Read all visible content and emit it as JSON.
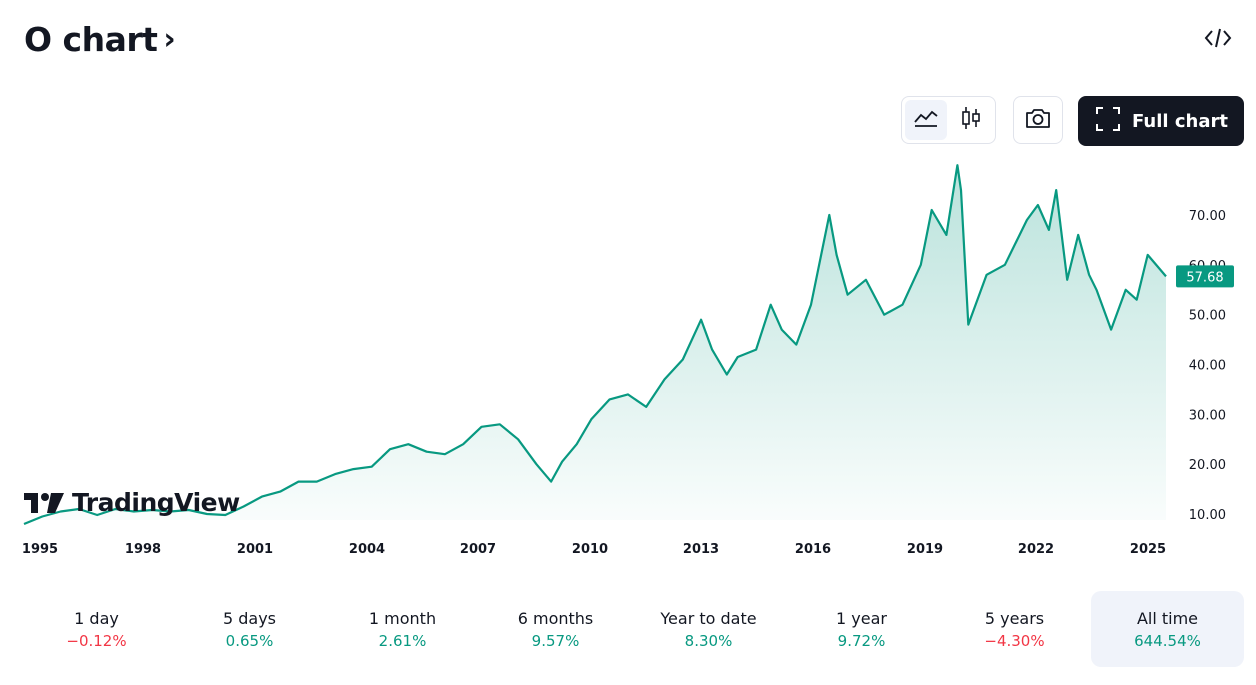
{
  "header": {
    "title": "O chart",
    "chevron": "›"
  },
  "toolbar": {
    "full_chart_label": "Full chart"
  },
  "price_badge": {
    "value": "57.68",
    "color": "#089981"
  },
  "logo": {
    "text": "TradingView"
  },
  "colors": {
    "line": "#089981",
    "positive": "#089981",
    "negative": "#f23645"
  },
  "icons": [
    "code-embed-icon",
    "area-chart-icon",
    "candlestick-icon",
    "camera-icon",
    "fullscreen-icon"
  ],
  "ranges": [
    {
      "label": "1 day",
      "change": "−0.12%",
      "sign": "neg"
    },
    {
      "label": "5 days",
      "change": "0.65%",
      "sign": "pos"
    },
    {
      "label": "1 month",
      "change": "2.61%",
      "sign": "pos"
    },
    {
      "label": "6 months",
      "change": "9.57%",
      "sign": "pos"
    },
    {
      "label": "Year to date",
      "change": "8.30%",
      "sign": "pos"
    },
    {
      "label": "1 year",
      "change": "9.72%",
      "sign": "pos"
    },
    {
      "label": "5 years",
      "change": "−4.30%",
      "sign": "neg"
    },
    {
      "label": "All time",
      "change": "644.54%",
      "sign": "pos",
      "active": true
    }
  ],
  "chart_data": {
    "type": "area",
    "ylim": [
      7,
      80
    ],
    "yticks": [
      "10.00",
      "20.00",
      "30.00",
      "40.00",
      "50.00",
      "60.00",
      "70.00"
    ],
    "xticks": [
      "1995",
      "1998",
      "2001",
      "2004",
      "2007",
      "2010",
      "2013",
      "2016",
      "2019",
      "2022",
      "2025"
    ],
    "xlim": [
      1994.5,
      2025.7
    ],
    "series": [
      {
        "x": [
          1994.5,
          1995.0,
          1995.5,
          1996.0,
          1996.5,
          1997.0,
          1997.5,
          1998.0,
          1998.5,
          1999.0,
          1999.5,
          2000.0,
          2000.5,
          2001.0,
          2001.5,
          2002.0,
          2002.5,
          2003.0,
          2003.5,
          2004.0,
          2004.5,
          2005.0,
          2005.5,
          2006.0,
          2006.5,
          2007.0,
          2007.5,
          2008.0,
          2008.5,
          2008.9,
          2009.2,
          2009.6,
          2010.0,
          2010.5,
          2011.0,
          2011.5,
          2012.0,
          2012.5,
          2013.0,
          2013.3,
          2013.7,
          2014.0,
          2014.5,
          2014.9,
          2015.2,
          2015.6,
          2016.0,
          2016.5,
          2016.7,
          2017.0,
          2017.5,
          2018.0,
          2018.5,
          2019.0,
          2019.3,
          2019.7,
          2020.0,
          2020.1,
          2020.3,
          2020.8,
          2021.3,
          2021.9,
          2022.2,
          2022.5,
          2022.7,
          2023.0,
          2023.3,
          2023.6,
          2023.8,
          2024.2,
          2024.6,
          2024.9,
          2025.2,
          2025.7
        ],
        "values": [
          8,
          9.5,
          10.5,
          11,
          9.8,
          11,
          10.5,
          10.8,
          10.5,
          10.8,
          10,
          9.8,
          11.5,
          13.5,
          14.5,
          16.5,
          16.5,
          18,
          19,
          19.5,
          23,
          24,
          22.5,
          22,
          24,
          27.5,
          28,
          25,
          20,
          16.5,
          20.5,
          24,
          29,
          33,
          34,
          31.5,
          37,
          41,
          49,
          43,
          38,
          41.5,
          43,
          52,
          47,
          44,
          52,
          70,
          62,
          54,
          57,
          50,
          52,
          60,
          71,
          66,
          80,
          75,
          48,
          58,
          60,
          69,
          72,
          67,
          75,
          57,
          66,
          58,
          55,
          47,
          55,
          53,
          62,
          57.68
        ]
      }
    ]
  }
}
